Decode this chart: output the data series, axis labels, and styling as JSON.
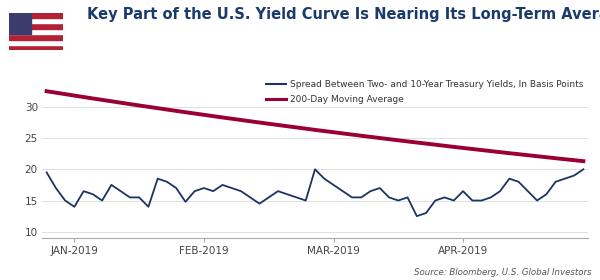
{
  "title": "Key Part of the U.S. Yield Curve Is Nearing Its Long-Term Average",
  "title_color": "#1a3a6b",
  "title_fontsize": 10.5,
  "background_color": "#ffffff",
  "source_text": "Source: Bloomberg, U.S. Global Investors",
  "ylabel_values": [
    10,
    15,
    20,
    25,
    30
  ],
  "ylim": [
    9.0,
    35.0
  ],
  "xtick_labels": [
    "JAN-2019",
    "FEB-2019",
    "MAR-2019",
    "APR-2019"
  ],
  "xtick_positions": [
    3,
    17,
    31,
    45
  ],
  "spread_color": "#1e3263",
  "ma_color": "#9b0032",
  "legend_spread_label": "Spread Between Two- and 10-Year Treasury Yields, In Basis Points",
  "legend_ma_label": "200-Day Moving Average",
  "spread_data": [
    19.5,
    17.0,
    15.0,
    14.0,
    16.5,
    16.0,
    15.0,
    17.5,
    16.5,
    15.5,
    15.5,
    14.0,
    18.5,
    18.0,
    17.0,
    14.8,
    16.5,
    17.0,
    16.5,
    17.5,
    17.0,
    16.5,
    15.5,
    14.5,
    15.5,
    16.5,
    16.0,
    15.5,
    15.0,
    20.0,
    18.5,
    17.5,
    16.5,
    15.5,
    15.5,
    16.5,
    17.0,
    15.5,
    15.0,
    15.5,
    12.5,
    13.0,
    15.0,
    15.5,
    15.0,
    16.5,
    15.0,
    15.0,
    15.5,
    16.5,
    18.5,
    18.0,
    16.5,
    15.0,
    16.0,
    18.0,
    18.5,
    19.0,
    20.0
  ],
  "ma_start": 32.5,
  "ma_end": 21.3,
  "n_points": 59,
  "xlim_left": -0.5,
  "xlim_right": 58.5
}
